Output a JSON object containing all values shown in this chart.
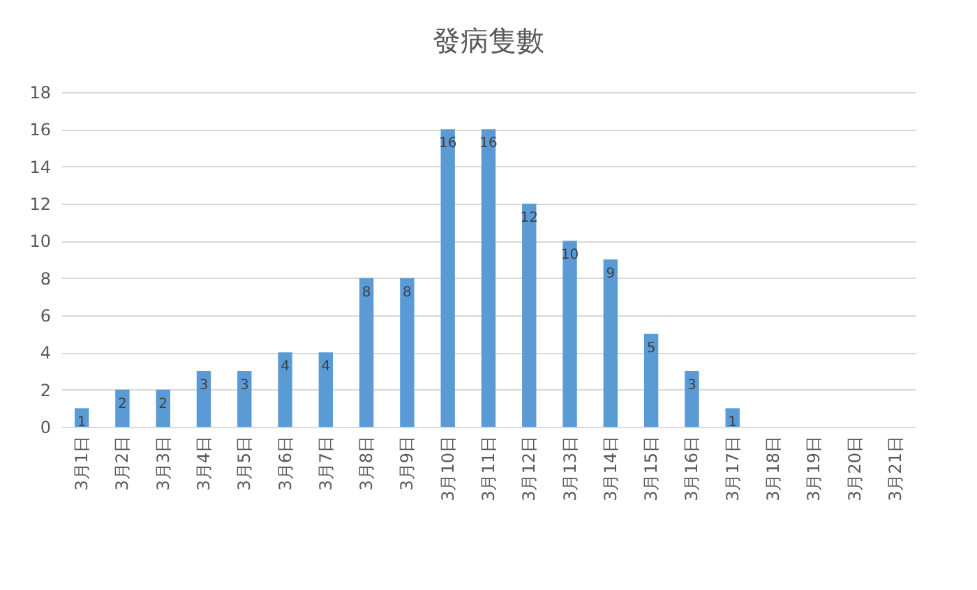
{
  "chart_data": {
    "type": "bar",
    "title": "發病隻數",
    "categories": [
      "3月1日",
      "3月2日",
      "3月3日",
      "3月4日",
      "3月5日",
      "3月6日",
      "3月7日",
      "3月8日",
      "3月9日",
      "3月10日",
      "3月11日",
      "3月12日",
      "3月13日",
      "3月14日",
      "3月15日",
      "3月16日",
      "3月17日",
      "3月18日",
      "3月19日",
      "3月20日",
      "3月21日"
    ],
    "values": [
      1,
      2,
      2,
      3,
      3,
      4,
      4,
      8,
      8,
      16,
      16,
      12,
      10,
      9,
      5,
      3,
      1,
      0,
      0,
      0,
      0
    ],
    "value_labels": [
      "1",
      "2",
      "2",
      "3",
      "3",
      "4",
      "4",
      "8",
      "8",
      "16",
      "16",
      "12",
      "10",
      "9",
      "5",
      "3",
      "1",
      null,
      null,
      null,
      null
    ],
    "color": "#5b9bd5",
    "ylim": [
      0,
      18
    ],
    "yticks": [
      0,
      2,
      4,
      6,
      8,
      10,
      12,
      14,
      16,
      18
    ],
    "grid": "y"
  }
}
